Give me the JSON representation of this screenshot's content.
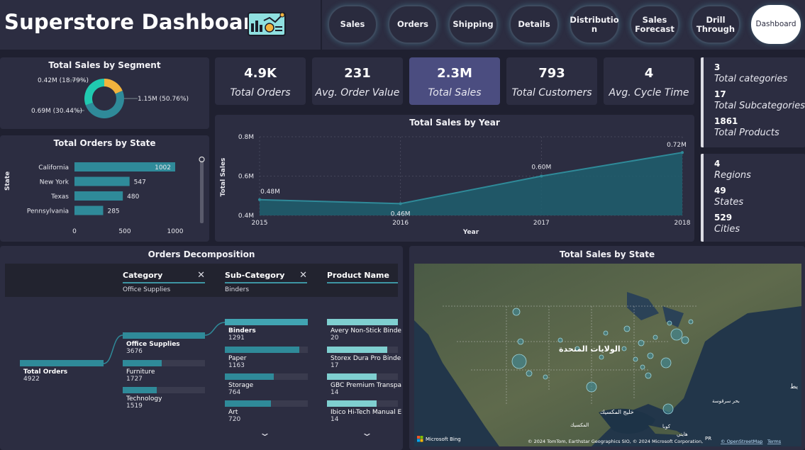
{
  "header": {
    "title": "Superstore Dashboard",
    "logo_icon": "dashboard-chart-icon"
  },
  "nav": {
    "items": [
      {
        "label": "Sales"
      },
      {
        "label": "Orders"
      },
      {
        "label": "Shipping"
      },
      {
        "label": "Details"
      },
      {
        "label": "Distributio n"
      },
      {
        "label": "Sales Forecast"
      },
      {
        "label": "Drill Through"
      },
      {
        "label": "Dashboard"
      }
    ],
    "active": "Dashboard"
  },
  "segment": {
    "title": "Total Sales by Segment",
    "labels": [
      "0.42M (18.79%)",
      "1.15M (50.76%)",
      "0.69M (30.44%)"
    ],
    "colors": [
      "#f2b33d",
      "#2f8a99",
      "#20c9b0"
    ]
  },
  "kpis": [
    {
      "value": "4.9K",
      "label": "Total Orders"
    },
    {
      "value": "231",
      "label": "Avg. Order Value"
    },
    {
      "value": "2.3M",
      "label": "Total Sales"
    },
    {
      "value": "793",
      "label": "Total Customers"
    },
    {
      "value": "4",
      "label": "Avg. Cycle Time"
    }
  ],
  "stats_products": [
    {
      "value": "3",
      "label": "Total categories"
    },
    {
      "value": "17",
      "label": "Total Subcategories"
    },
    {
      "value": "1861",
      "label": "Total Products"
    }
  ],
  "stats_geo": [
    {
      "value": "4",
      "label": "Regions"
    },
    {
      "value": "49",
      "label": "States"
    },
    {
      "value": "529",
      "label": "Cities"
    }
  ],
  "chart_data": [
    {
      "type": "bar",
      "orientation": "horizontal",
      "title": "Total Orders by State",
      "ylabel": "State",
      "categories": [
        "California",
        "New York",
        "Texas",
        "Pennsylvania"
      ],
      "values": [
        1002,
        547,
        480,
        285
      ],
      "value_labels": [
        "1002",
        "547",
        "480",
        "285"
      ],
      "xticks": [
        "0",
        "500",
        "1000"
      ],
      "xlim": [
        0,
        1000
      ],
      "color": "#2f8a99"
    },
    {
      "type": "area",
      "title": "Total Sales by Year",
      "xlabel": "Year",
      "ylabel": "Total Sales",
      "x": [
        "2015",
        "2016",
        "2017",
        "2018"
      ],
      "values": [
        0.48,
        0.46,
        0.6,
        0.72
      ],
      "value_labels": [
        "0.48M",
        "0.46M",
        "0.60M",
        "0.72M"
      ],
      "yticks": [
        "0.8M",
        "0.6M",
        "0.4M"
      ],
      "ylim": [
        0.4,
        0.8
      ],
      "color": "#2f8a99"
    },
    {
      "type": "pie",
      "title": "Total Sales by Segment",
      "values": [
        0.42,
        1.15,
        0.69
      ],
      "percents": [
        18.79,
        50.76,
        30.44
      ]
    }
  ],
  "decomp": {
    "title": "Orders Decomposition",
    "columns": [
      {
        "header": "Category",
        "selected": "Office Supplies"
      },
      {
        "header": "Sub-Category",
        "selected": "Binders"
      },
      {
        "header": "Product Name",
        "selected": ""
      }
    ],
    "close_glyph": "✕",
    "chevron_glyph": "⌄",
    "root": {
      "name": "Total Orders",
      "value": "4922",
      "ratio": 1.0
    },
    "categories": [
      {
        "name": "Office Supplies",
        "value": "3676",
        "ratio": 1.0
      },
      {
        "name": "Furniture",
        "value": "1727",
        "ratio": 0.47
      },
      {
        "name": "Technology",
        "value": "1519",
        "ratio": 0.41
      }
    ],
    "subcategories": [
      {
        "name": "Binders",
        "value": "1291",
        "ratio": 1.0
      },
      {
        "name": "Paper",
        "value": "1163",
        "ratio": 0.9
      },
      {
        "name": "Storage",
        "value": "764",
        "ratio": 0.59
      },
      {
        "name": "Art",
        "value": "720",
        "ratio": 0.56
      }
    ],
    "products": [
      {
        "name": "Avery Non-Stick Binde",
        "value": "20",
        "ratio": 1.0
      },
      {
        "name": "Storex Dura Pro Binde",
        "value": "17",
        "ratio": 0.85
      },
      {
        "name": "GBC Premium Transpa",
        "value": "14",
        "ratio": 0.7
      },
      {
        "name": "Ibico Hi-Tech Manual E",
        "value": "14",
        "ratio": 0.7
      }
    ]
  },
  "map": {
    "title": "Total Sales by State",
    "country_label": "الولايات المتحدة",
    "gulf_label": "خليج المكسيك",
    "mexico_label": "المكسيك",
    "cuba_label": "كوبا",
    "haiti_label": "هايتي",
    "sargasso_label": "بحر سرقوسة",
    "ocean_label": "يط",
    "pr_label": "PR",
    "bing_label": "Microsoft Bing",
    "attribution": "© 2024 TomTom, Earthstar Geographics SIO, © 2024 Microsoft Corporation,",
    "osm_link": "© OpenStreetMap",
    "terms_link": "Terms"
  }
}
